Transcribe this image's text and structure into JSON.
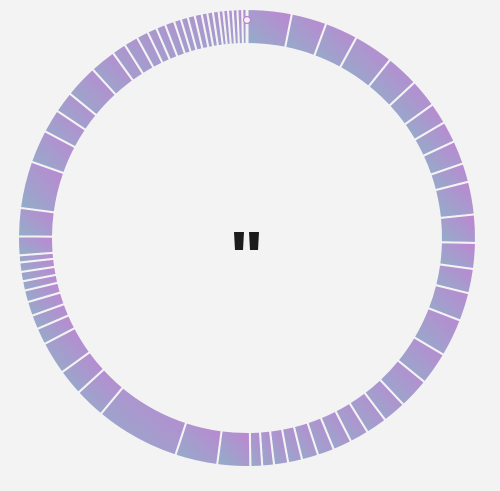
{
  "app": {
    "name": ""
  },
  "control": {
    "state": "playing",
    "icon": "pause-icon"
  },
  "ring": {
    "colors": {
      "top_right": "#c084d3",
      "bottom_left": "#8fb0c8",
      "separator": "#f4f3f4",
      "background": "#f4f3f4",
      "icon": "#1c1c1c"
    },
    "segment_weights": [
      9.5,
      7.5,
      7,
      8.5,
      7,
      6,
      4.5,
      4.5,
      5,
      4,
      7,
      6,
      5.5,
      5.2,
      6,
      8,
      7,
      6.5,
      5,
      4.5,
      4,
      4,
      3.5,
      3.5,
      3,
      3,
      2.5,
      2.5,
      7,
      9,
      18,
      6.5,
      5.5,
      7,
      3.5,
      3,
      3,
      2.5,
      2,
      2,
      2,
      1.5,
      4,
      6,
      10,
      7,
      5,
      4.5,
      7,
      5.5,
      3,
      3,
      2.5,
      2,
      2,
      2,
      1.5,
      1.5,
      1.5,
      1.5,
      1.2,
      1.2,
      1.2,
      1,
      1,
      1,
      1,
      1,
      1
    ],
    "playhead_position": 0.0
  }
}
